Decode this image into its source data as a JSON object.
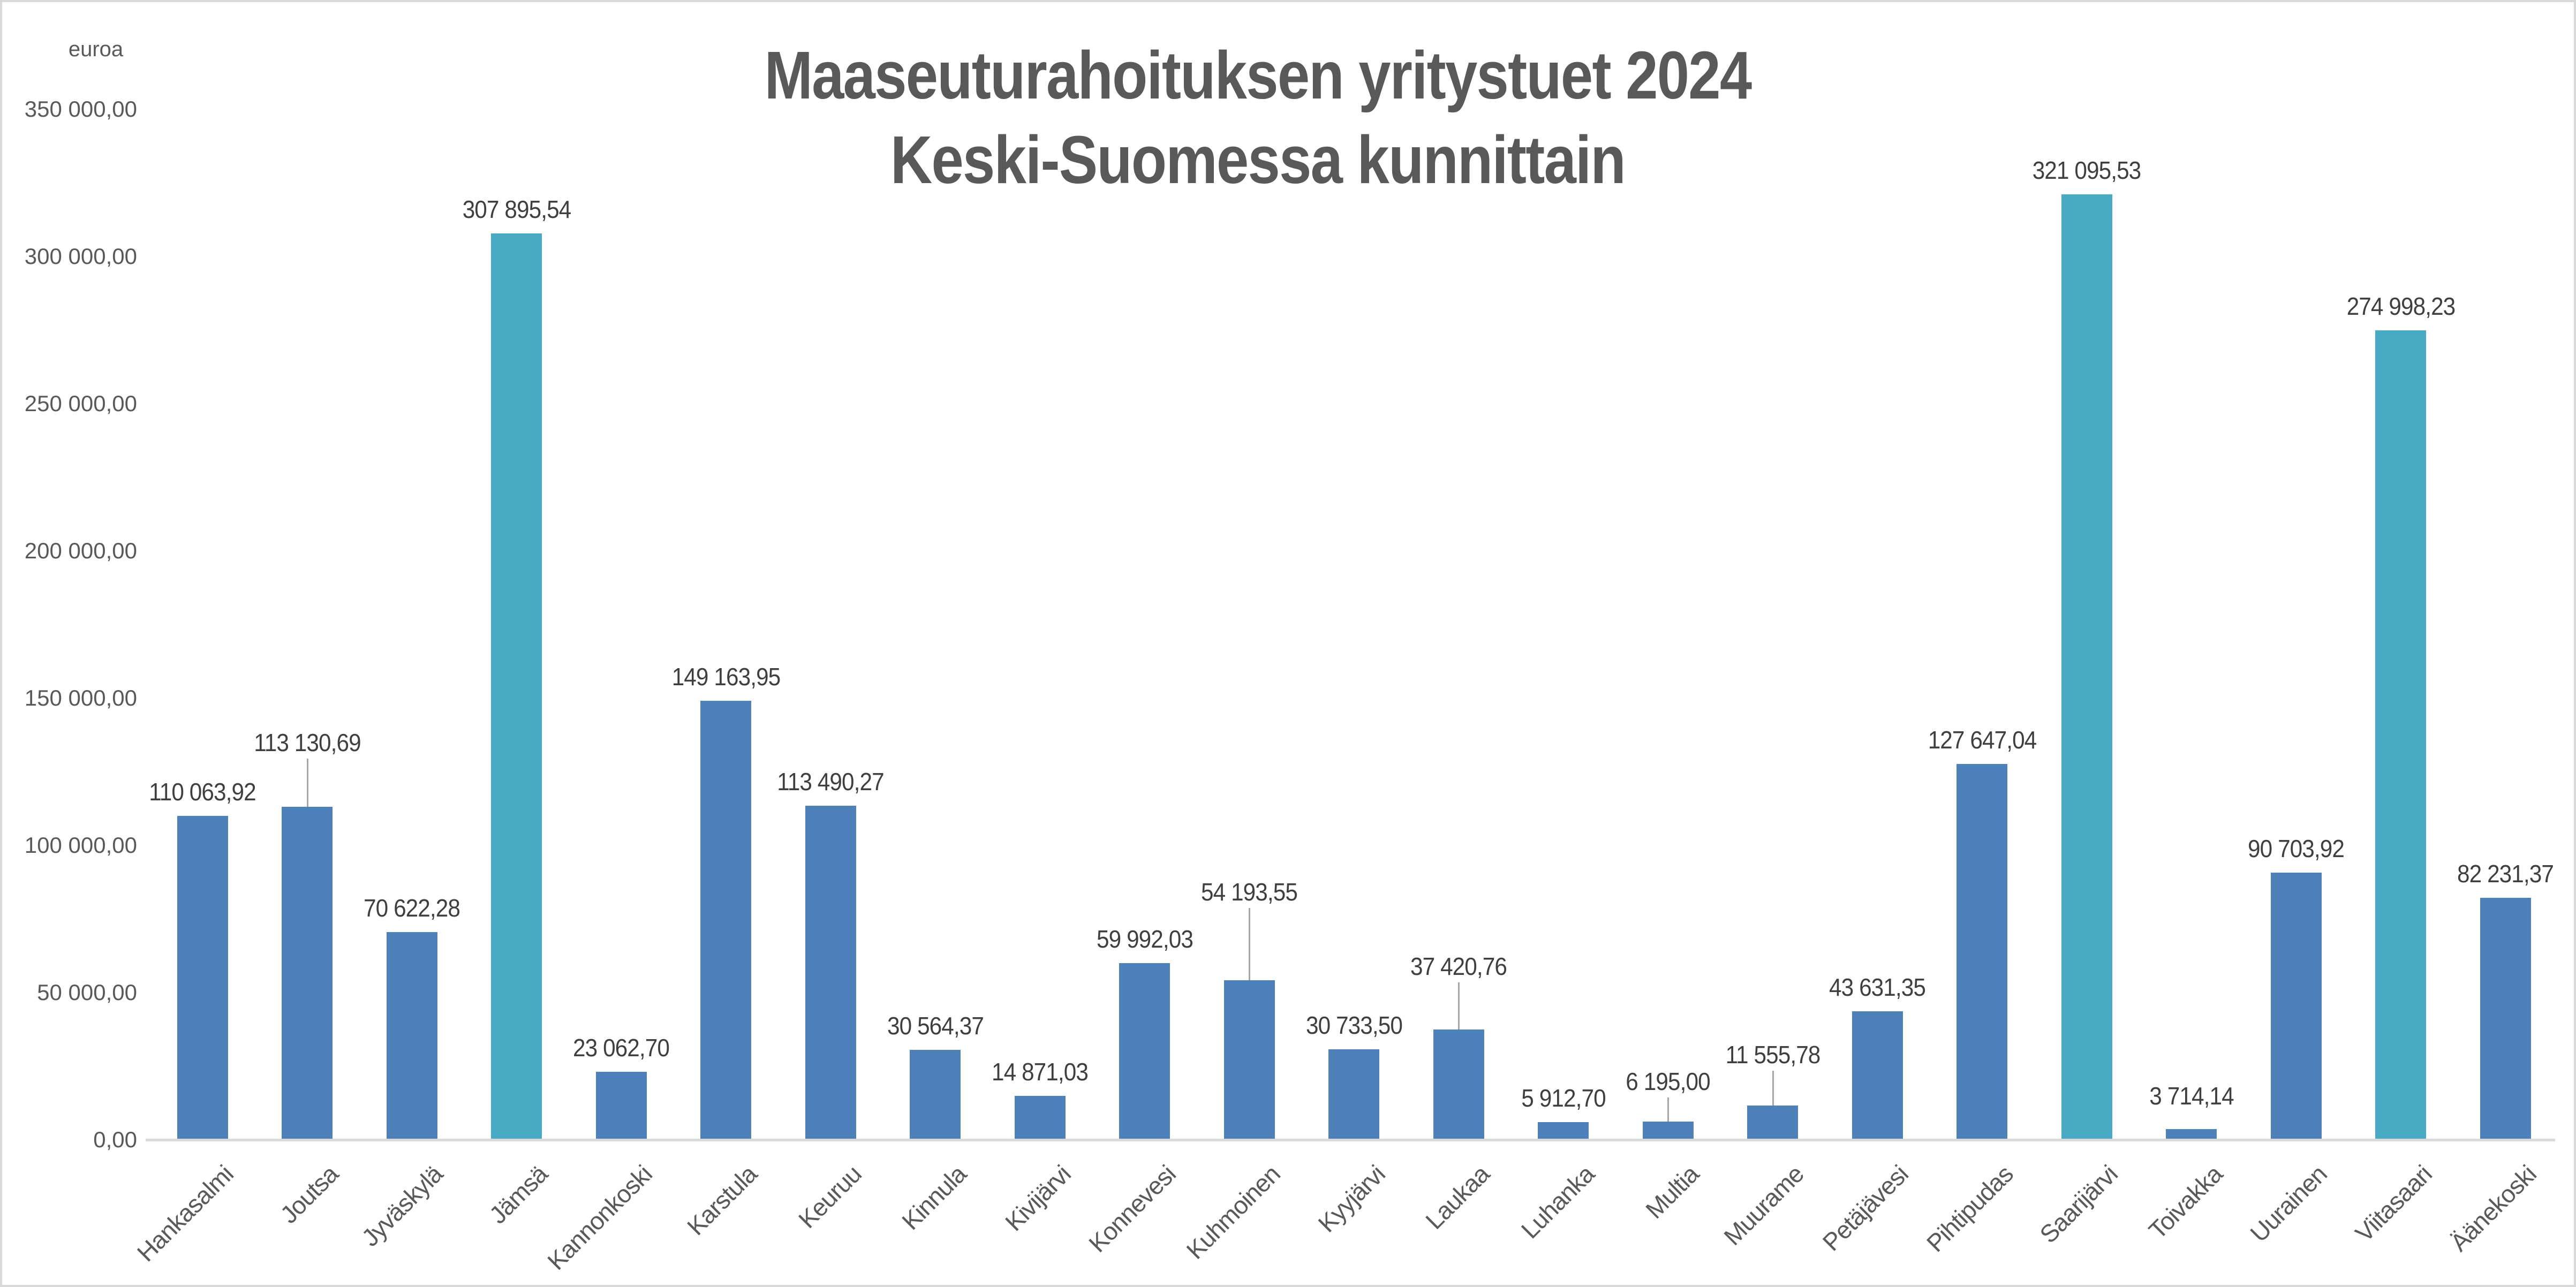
{
  "chart_data": {
    "type": "bar",
    "title_lines": [
      "Maaseuturahoituksen yritystuet 2024",
      "Keski-Suomessa kunnittain"
    ],
    "y_axis_title": "euroa",
    "categories": [
      "Hankasalmi",
      "Joutsa",
      "Jyväskylä",
      "Jämsä",
      "Kannonkoski",
      "Karstula",
      "Keuruu",
      "Kinnula",
      "Kivijärvi",
      "Konnevesi",
      "Kuhmoinen",
      "Kyyjärvi",
      "Laukaa",
      "Luhanka",
      "Multia",
      "Muurame",
      "Petäjävesi",
      "Pihtipudas",
      "Saarijärvi",
      "Toivakka",
      "Uurainen",
      "Viitasaari",
      "Äänekoski"
    ],
    "values": [
      110063.92,
      113130.69,
      70622.28,
      307895.54,
      23062.7,
      149163.95,
      113490.27,
      30564.37,
      14871.03,
      59992.03,
      54193.55,
      30733.5,
      37420.76,
      5912.7,
      6195.0,
      11555.78,
      43631.35,
      127647.04,
      321095.53,
      3714.14,
      90703.92,
      274998.23,
      82231.37
    ],
    "value_labels": [
      "110 063,92",
      "113 130,69",
      "70 622,28",
      "307 895,54",
      "23 062,70",
      "149 163,95",
      "113 490,27",
      "30 564,37",
      "14 871,03",
      "59 992,03",
      "54 193,55",
      "30 733,50",
      "37 420,76",
      "5 912,70",
      "6 195,00",
      "11 555,78",
      "43 631,35",
      "127 647,04",
      "321 095,53",
      "3 714,14",
      "90 703,92",
      "274 998,23",
      "82 231,37"
    ],
    "highlighted_indices": [
      3,
      18,
      21
    ],
    "label_overrides": {
      "1": {
        "dy": 120,
        "leader": true
      },
      "10": {
        "dy": 165,
        "leader": true
      },
      "12": {
        "dy": 118,
        "leader": true
      },
      "14": {
        "dy": 75,
        "leader": true
      },
      "15": {
        "dy": 95,
        "leader": true
      },
      "19": {
        "dy": 62,
        "leader": false
      }
    },
    "ylim": [
      0,
      350000
    ],
    "ytick_step": 50000,
    "ytick_labels": [
      "0,00",
      "50 000,00",
      "100 000,00",
      "150 000,00",
      "200 000,00",
      "250 000,00",
      "300 000,00",
      "350 000,00"
    ],
    "grid": false,
    "legend": "none",
    "colors": {
      "bar": "#4e80ba",
      "highlight": "#48aac2",
      "baseline": "#d9d9d9",
      "leader_line": "#a6a6a6",
      "title_text": "#595959",
      "axis_text": "#595959",
      "data_label_text": "#3f3f3f"
    }
  }
}
